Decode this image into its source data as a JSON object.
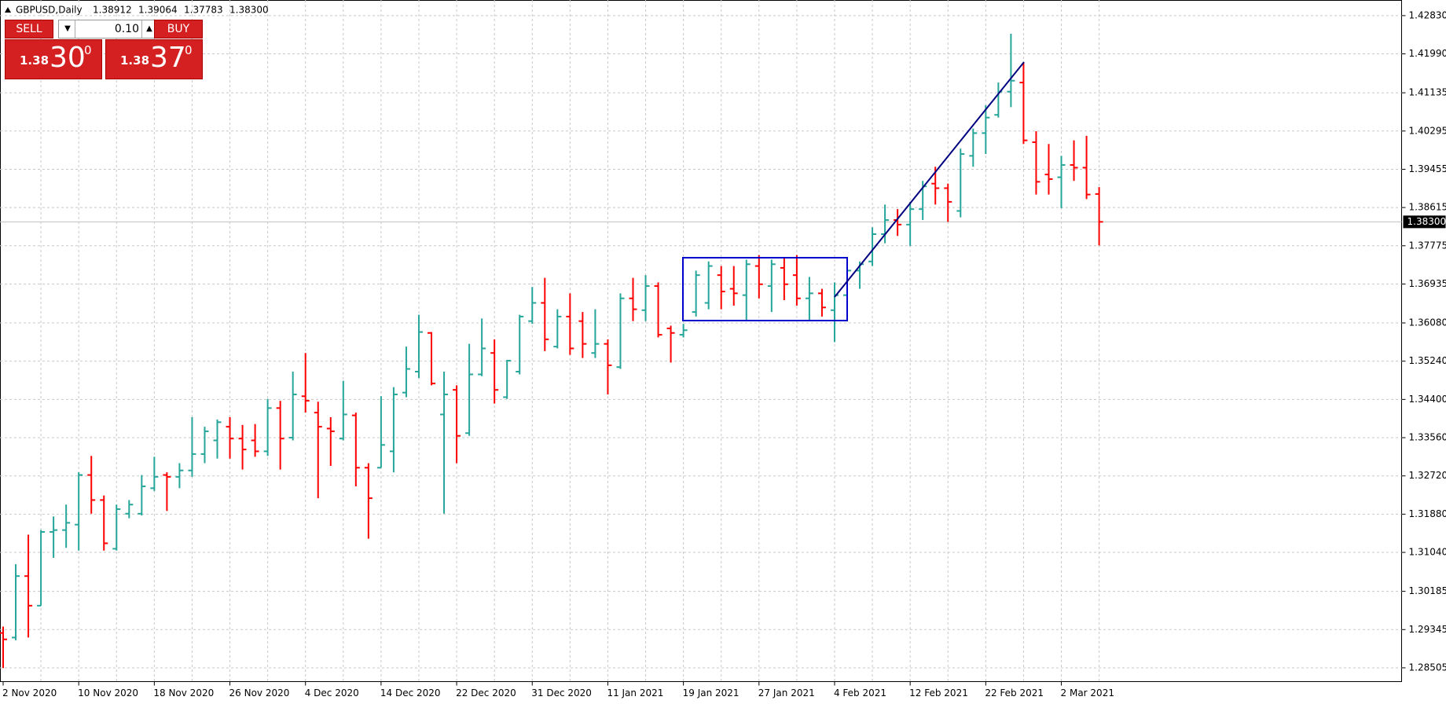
{
  "chart_data": {
    "type": "ohlc",
    "symbol": "GBPUSD,Daily",
    "last_bar_labels": [
      "1.38912",
      "1.39064",
      "1.37783",
      "1.38300"
    ],
    "current_price": {
      "value": 1.383,
      "label": "1.38300"
    },
    "up_color": "#26a69a",
    "down_color": "#ff0000",
    "grid": true,
    "categories": [
      "2 Nov 2020",
      null,
      null,
      null,
      null,
      null,
      "10 Nov 2020",
      null,
      null,
      null,
      null,
      null,
      "18 Nov 2020",
      null,
      null,
      null,
      null,
      null,
      "26 Nov 2020",
      null,
      null,
      null,
      null,
      null,
      "4 Dec 2020",
      null,
      null,
      null,
      null,
      null,
      "14 Dec 2020",
      null,
      null,
      null,
      null,
      null,
      "22 Dec 2020",
      null,
      null,
      null,
      null,
      null,
      "31 Dec 2020",
      null,
      null,
      null,
      null,
      null,
      "11 Jan 2021",
      null,
      null,
      null,
      null,
      null,
      "19 Jan 2021",
      null,
      null,
      null,
      null,
      null,
      "27 Jan 2021",
      null,
      null,
      null,
      null,
      null,
      "4 Feb 2021",
      null,
      null,
      null,
      null,
      null,
      "12 Feb 2021",
      null,
      null,
      null,
      null,
      null,
      "22 Feb 2021",
      null,
      null,
      null,
      null,
      null,
      "2 Mar 2021",
      null,
      null,
      null
    ],
    "open": [
      1.2927,
      1.2917,
      1.3052,
      1.2987,
      1.3149,
      1.3153,
      1.3165,
      1.3274,
      1.3219,
      1.3112,
      1.3189,
      1.3189,
      1.3245,
      1.3274,
      1.327,
      1.3284,
      1.332,
      1.335,
      1.338,
      1.3354,
      1.335,
      1.3326,
      1.3421,
      1.3356,
      1.3447,
      1.3411,
      1.3376,
      1.3354,
      1.3405,
      1.329,
      1.329,
      1.3326,
      1.3455,
      1.3501,
      1.3586,
      1.3407,
      1.3461,
      1.3366,
      1.3495,
      1.3542,
      1.3445,
      1.3501,
      1.3612,
      1.3652,
      1.3556,
      1.3622,
      1.3612,
      1.3542,
      1.3562,
      1.3511,
      1.3662,
      1.3636,
      1.3689,
      1.3596,
      1.3582,
      1.3632,
      1.3652,
      1.3713,
      1.3683,
      1.3669,
      1.3733,
      1.3689,
      1.3729,
      1.3713,
      1.3662,
      1.3673,
      1.3636,
      1.3669,
      1.3723,
      1.3743,
      1.3803,
      1.3834,
      1.3824,
      1.3858,
      1.3914,
      1.3904,
      1.3854,
      1.3975,
      1.4025,
      1.4065,
      1.4116,
      1.4136,
      1.4005,
      1.3934,
      1.3928,
      1.3955,
      1.3949,
      1.38912
    ],
    "high": [
      1.2941,
      1.3078,
      1.3143,
      1.3153,
      1.3183,
      1.3209,
      1.328,
      1.3316,
      1.3229,
      1.3209,
      1.3219,
      1.3274,
      1.3314,
      1.328,
      1.33,
      1.3401,
      1.338,
      1.3396,
      1.3401,
      1.3384,
      1.3386,
      1.3441,
      1.3437,
      1.3501,
      1.3542,
      1.3435,
      1.3401,
      1.3481,
      1.3411,
      1.33,
      1.3447,
      1.3467,
      1.3556,
      1.3626,
      1.3588,
      1.3501,
      1.3471,
      1.3562,
      1.3618,
      1.3572,
      1.3527,
      1.3626,
      1.3687,
      1.3707,
      1.3638,
      1.3673,
      1.3632,
      1.3638,
      1.3572,
      1.3673,
      1.3707,
      1.3713,
      1.3697,
      1.3602,
      1.3606,
      1.3723,
      1.3743,
      1.3733,
      1.3733,
      1.3747,
      1.3757,
      1.3747,
      1.3753,
      1.3757,
      1.3709,
      1.3683,
      1.3697,
      1.3733,
      1.3743,
      1.3818,
      1.3868,
      1.3858,
      1.3874,
      1.392,
      1.3951,
      1.3914,
      1.3991,
      1.4035,
      1.4086,
      1.4136,
      1.4243,
      1.418,
      1.4029,
      1.4001,
      1.3975,
      1.4009,
      1.4019,
      1.39064
    ],
    "low": [
      1.285,
      1.2911,
      1.2917,
      1.2987,
      1.3092,
      1.3114,
      1.3108,
      1.3189,
      1.3108,
      1.3108,
      1.3179,
      1.3185,
      1.3239,
      1.3195,
      1.3245,
      1.327,
      1.33,
      1.331,
      1.331,
      1.3286,
      1.3314,
      1.3316,
      1.3286,
      1.335,
      1.3411,
      1.3223,
      1.3294,
      1.335,
      1.3249,
      1.3134,
      1.329,
      1.328,
      1.3445,
      1.3487,
      1.3471,
      1.3189,
      1.33,
      1.336,
      1.3491,
      1.3431,
      1.3441,
      1.3495,
      1.3606,
      1.3546,
      1.3552,
      1.3538,
      1.3531,
      1.3531,
      1.3451,
      1.3507,
      1.3612,
      1.3612,
      1.3576,
      1.3521,
      1.3576,
      1.3622,
      1.3638,
      1.3638,
      1.3646,
      1.3612,
      1.3662,
      1.3632,
      1.3658,
      1.3646,
      1.3612,
      1.3622,
      1.3566,
      1.3652,
      1.3683,
      1.3733,
      1.3783,
      1.3799,
      1.3777,
      1.3834,
      1.3868,
      1.383,
      1.384,
      1.3951,
      1.3979,
      1.4059,
      1.4082,
      1.4001,
      1.389,
      1.389,
      1.386,
      1.392,
      1.388,
      1.37783
    ],
    "close": [
      1.2913,
      1.3052,
      1.2987,
      1.3149,
      1.3153,
      1.3169,
      1.3274,
      1.3219,
      1.3124,
      1.3199,
      1.3209,
      1.3249,
      1.327,
      1.327,
      1.3284,
      1.332,
      1.337,
      1.339,
      1.3354,
      1.333,
      1.3326,
      1.3421,
      1.3354,
      1.3451,
      1.3437,
      1.338,
      1.337,
      1.3407,
      1.329,
      1.3223,
      1.334,
      1.3451,
      1.3507,
      1.3588,
      1.3475,
      1.3451,
      1.336,
      1.3495,
      1.3552,
      1.3461,
      1.3525,
      1.3622,
      1.3652,
      1.3572,
      1.3622,
      1.3552,
      1.3562,
      1.3562,
      1.3515,
      1.3662,
      1.3638,
      1.3689,
      1.3582,
      1.3586,
      1.3592,
      1.3713,
      1.3733,
      1.3677,
      1.3673,
      1.3737,
      1.3693,
      1.3737,
      1.3693,
      1.3662,
      1.3673,
      1.3642,
      1.3669,
      1.3723,
      1.3737,
      1.3803,
      1.3834,
      1.3824,
      1.3858,
      1.3908,
      1.3904,
      1.3874,
      1.3979,
      1.4025,
      1.4059,
      1.4116,
      1.414,
      1.4009,
      1.3918,
      1.3924,
      1.3955,
      1.3949,
      1.389,
      1.383
    ],
    "ylim": [
      1.28202,
      1.43173
    ],
    "yticks": [
      1.28505,
      1.29345,
      1.30185,
      {
        "value": 1.3104,
        "label": "1.31040"
      },
      {
        "value": 1.3188,
        "label": "1.31880"
      },
      {
        "value": 1.3272,
        "label": "1.32720"
      },
      {
        "value": 1.3356,
        "label": "1.33560"
      },
      {
        "value": 1.344,
        "label": "1.34400"
      },
      {
        "value": 1.3524,
        "label": "1.35240"
      },
      {
        "value": 1.3608,
        "label": "1.36080"
      },
      1.36935,
      1.37775,
      1.38615,
      1.39455,
      1.40295,
      1.41135,
      {
        "value": 1.4199,
        "label": "1.41990"
      },
      {
        "value": 1.4283,
        "label": "1.42830"
      }
    ]
  },
  "trade_panel": {
    "sell": "SELL",
    "lot": "0.10",
    "buy": "BUY",
    "bid_big": "1.38",
    "bid_main": "30",
    "bid_small": "0",
    "ask_big": "1.38",
    "ask_main": "37",
    "ask_small": "0"
  }
}
